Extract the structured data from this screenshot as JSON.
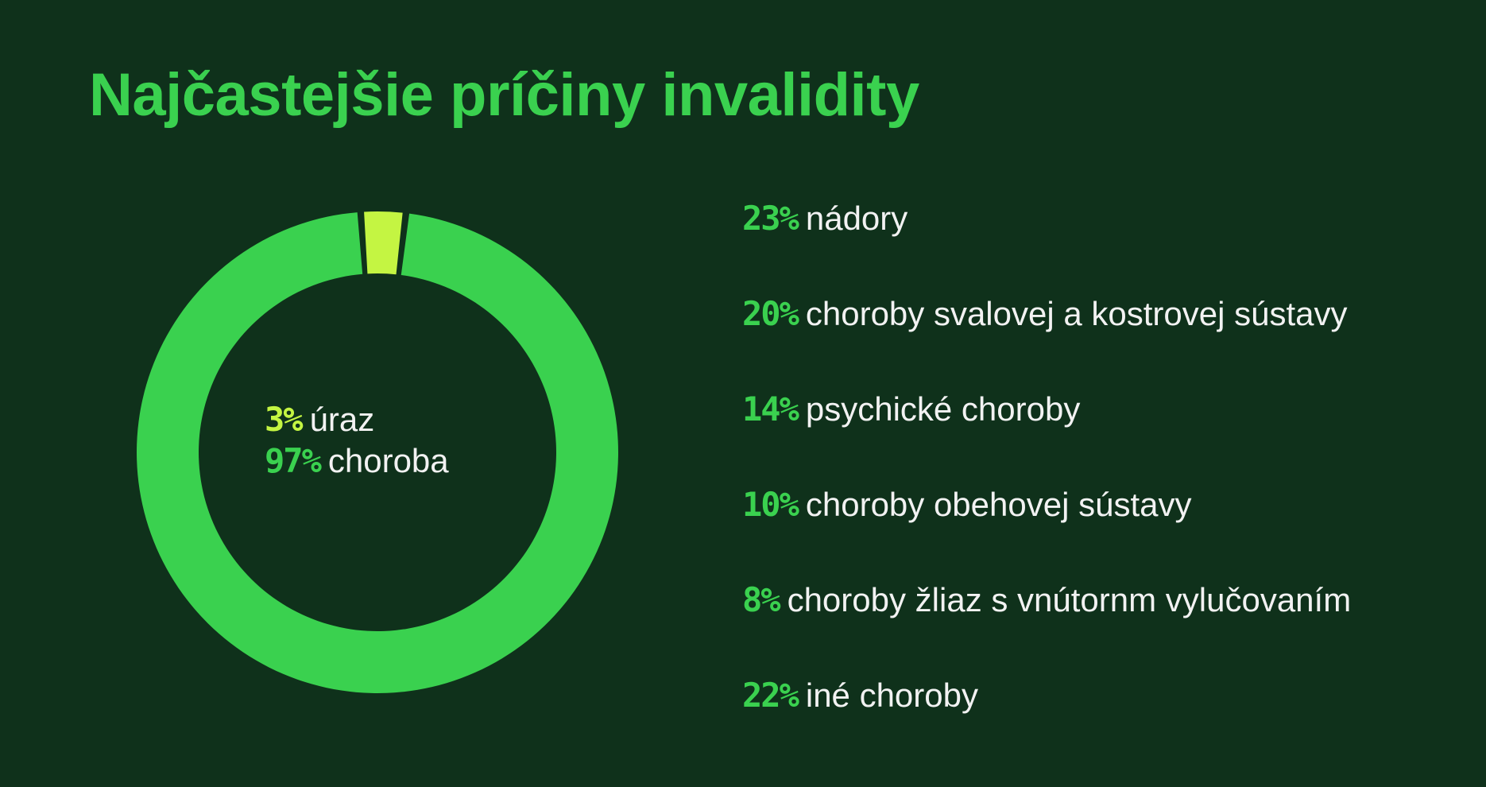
{
  "colors": {
    "background": "#0f311b",
    "accent_green": "#3ad14f",
    "accent_lime": "#c4f542",
    "text": "#f2f2f2"
  },
  "title": "Najčastejšie príčiny invalidity",
  "chart_data": [
    {
      "type": "pie",
      "variant": "donut",
      "categories": [
        "úraz",
        "choroba"
      ],
      "values": [
        3,
        97
      ],
      "unit": "%",
      "slice_colors": [
        "#c4f542",
        "#3ad14f"
      ],
      "center_labels": [
        {
          "value": "3%",
          "label": "úraz",
          "color": "#c4f542"
        },
        {
          "value": "97%",
          "label": "choroba",
          "color": "#3ad14f"
        }
      ]
    },
    {
      "type": "table",
      "columns": [
        "value",
        "label"
      ],
      "rows": [
        {
          "value": "23%",
          "label": "nádory"
        },
        {
          "value": "20%",
          "label": "choroby svalovej a kostrovej sústavy"
        },
        {
          "value": "14%",
          "label": "psychické choroby"
        },
        {
          "value": "10%",
          "label": "choroby obehovej sústavy"
        },
        {
          "value": "8%",
          "label": "choroby žliaz s vnútornm vylučovaním"
        },
        {
          "value": "22%",
          "label": "iné choroby"
        }
      ]
    }
  ]
}
